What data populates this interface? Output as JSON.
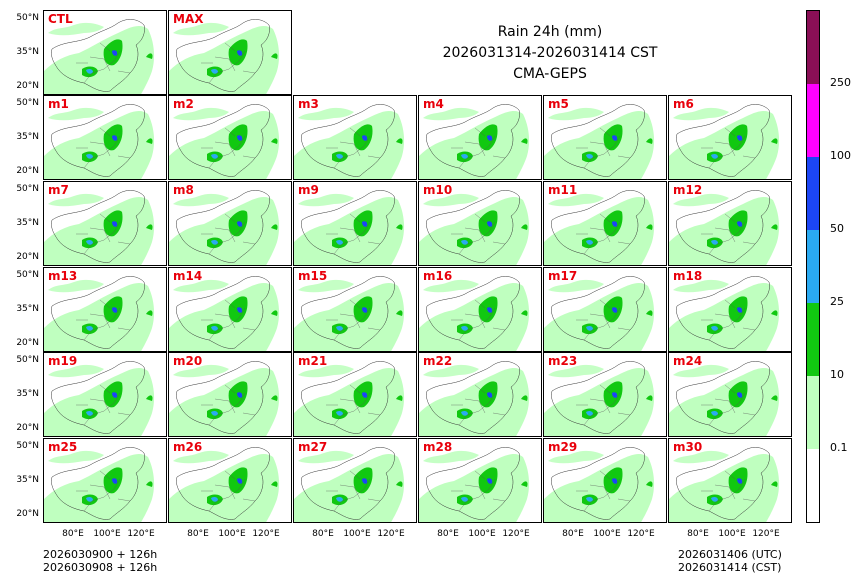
{
  "title": {
    "line1": "Rain 24h (mm)",
    "line2": "2026031314-2026031414 CST",
    "line3": "CMA-GEPS"
  },
  "panels_top": [
    "CTL",
    "MAX"
  ],
  "panels_members": [
    "m1",
    "m2",
    "m3",
    "m4",
    "m5",
    "m6",
    "m7",
    "m8",
    "m9",
    "m10",
    "m11",
    "m12",
    "m13",
    "m14",
    "m15",
    "m16",
    "m17",
    "m18",
    "m19",
    "m20",
    "m21",
    "m22",
    "m23",
    "m24",
    "m25",
    "m26",
    "m27",
    "m28",
    "m29",
    "m30"
  ],
  "lat_ticks": [
    "50°N",
    "35°N",
    "20°N"
  ],
  "lon_ticks": [
    "80°E",
    "100°E",
    "120°E"
  ],
  "footer": {
    "left_line1": "2026030900 + 126h",
    "left_line2": "2026030908 + 126h",
    "right_line1": "2026031406 (UTC)",
    "right_line2": "2026031414 (CST)"
  },
  "colorbar": {
    "labels": [
      "0.1",
      "10",
      "25",
      "50",
      "100",
      "250"
    ],
    "colors": [
      "#ffffff",
      "#bfffbf",
      "#11c811",
      "#2aaaf2",
      "#1c46f6",
      "#ff00ff",
      "#8a0f56"
    ]
  },
  "colors": {
    "label_red": "#e8000b",
    "light_green": "#bfffbf",
    "green": "#11c811",
    "cyan": "#2aaaf2",
    "blue": "#1c46f6"
  }
}
